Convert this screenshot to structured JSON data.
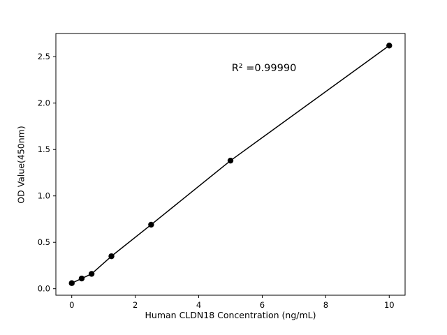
{
  "chart_data": {
    "type": "scatter",
    "title": "",
    "xlabel": "Human CLDN18 Concentration (ng/mL)",
    "ylabel": "OD Value(450nm)",
    "x": [
      0,
      0.3125,
      0.625,
      1.25,
      2.5,
      5,
      10
    ],
    "y": [
      0.06,
      0.11,
      0.16,
      0.35,
      0.69,
      1.38,
      2.62
    ],
    "has_fit_line": true,
    "xlim": [
      -0.5,
      10.5
    ],
    "ylim": [
      -0.07,
      2.75
    ],
    "xticks": [
      0,
      2,
      4,
      6,
      8,
      10
    ],
    "xtick_labels": [
      "0",
      "2",
      "4",
      "6",
      "8",
      "10"
    ],
    "ytick_values": [
      0,
      0.5,
      1.0,
      1.5,
      2.0,
      2.5
    ],
    "ytick_labels": [
      "0.0",
      "0.5",
      "1.0",
      "1.5",
      "2.0",
      "2.5"
    ],
    "annotation": {
      "text": "R² =0.99990",
      "x": 6.0,
      "y": 2.38
    },
    "grid": false,
    "legend": "none",
    "marker_color": "#000000",
    "line_color": "#000000",
    "background": "#ffffff"
  }
}
